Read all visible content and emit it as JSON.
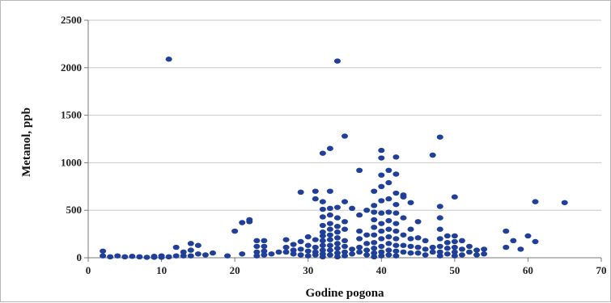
{
  "chart_data": {
    "type": "scatter",
    "xlabel": "Godine pogona",
    "ylabel": "Metanol, ppb",
    "xlim": [
      0,
      70
    ],
    "ylim": [
      0,
      2500
    ],
    "xticks": [
      "0",
      "10",
      "20",
      "30",
      "40",
      "50",
      "60",
      "70"
    ],
    "yticks": [
      "0",
      "500",
      "1000",
      "1500",
      "2000",
      "2500"
    ],
    "grid": "horizontal",
    "legend": "none",
    "colors": {
      "points": "#1f3f99",
      "grid": "#c8c8c8",
      "axis": "#7a7a7a"
    },
    "points": [
      [
        2,
        70
      ],
      [
        2,
        20
      ],
      [
        3,
        10
      ],
      [
        4,
        20
      ],
      [
        5,
        10
      ],
      [
        6,
        15
      ],
      [
        7,
        10
      ],
      [
        8,
        5
      ],
      [
        9,
        15
      ],
      [
        9,
        5
      ],
      [
        10,
        20
      ],
      [
        10,
        5
      ],
      [
        11,
        2090
      ],
      [
        11,
        10
      ],
      [
        12,
        110
      ],
      [
        12,
        20
      ],
      [
        13,
        60
      ],
      [
        13,
        20
      ],
      [
        14,
        150
      ],
      [
        14,
        80
      ],
      [
        14,
        20
      ],
      [
        15,
        130
      ],
      [
        15,
        40
      ],
      [
        16,
        30
      ],
      [
        17,
        50
      ],
      [
        19,
        20
      ],
      [
        20,
        280
      ],
      [
        21,
        370
      ],
      [
        21,
        40
      ],
      [
        22,
        400
      ],
      [
        22,
        380
      ],
      [
        23,
        180
      ],
      [
        23,
        120
      ],
      [
        23,
        60
      ],
      [
        23,
        20
      ],
      [
        24,
        180
      ],
      [
        24,
        120
      ],
      [
        24,
        70
      ],
      [
        24,
        30
      ],
      [
        25,
        40
      ],
      [
        26,
        60
      ],
      [
        27,
        190
      ],
      [
        27,
        110
      ],
      [
        27,
        60
      ],
      [
        28,
        140
      ],
      [
        28,
        80
      ],
      [
        28,
        40
      ],
      [
        29,
        690
      ],
      [
        29,
        170
      ],
      [
        29,
        90
      ],
      [
        29,
        30
      ],
      [
        30,
        220
      ],
      [
        30,
        130
      ],
      [
        30,
        70
      ],
      [
        30,
        20
      ],
      [
        31,
        700
      ],
      [
        31,
        620
      ],
      [
        31,
        190
      ],
      [
        31,
        110
      ],
      [
        31,
        60
      ],
      [
        31,
        30
      ],
      [
        32,
        1100
      ],
      [
        32,
        590
      ],
      [
        32,
        510
      ],
      [
        32,
        430
      ],
      [
        32,
        340
      ],
      [
        32,
        270
      ],
      [
        32,
        230
      ],
      [
        32,
        180
      ],
      [
        32,
        130
      ],
      [
        32,
        80
      ],
      [
        32,
        40
      ],
      [
        32,
        10
      ],
      [
        33,
        1150
      ],
      [
        33,
        700
      ],
      [
        33,
        520
      ],
      [
        33,
        450
      ],
      [
        33,
        360
      ],
      [
        33,
        300
      ],
      [
        33,
        240
      ],
      [
        33,
        190
      ],
      [
        33,
        130
      ],
      [
        33,
        80
      ],
      [
        33,
        30
      ],
      [
        34,
        2070
      ],
      [
        34,
        530
      ],
      [
        34,
        420
      ],
      [
        34,
        330
      ],
      [
        34,
        270
      ],
      [
        34,
        210
      ],
      [
        34,
        150
      ],
      [
        34,
        100
      ],
      [
        34,
        50
      ],
      [
        34,
        10
      ],
      [
        35,
        1280
      ],
      [
        35,
        590
      ],
      [
        35,
        380
      ],
      [
        35,
        300
      ],
      [
        35,
        180
      ],
      [
        35,
        120
      ],
      [
        35,
        60
      ],
      [
        35,
        20
      ],
      [
        36,
        520
      ],
      [
        36,
        90
      ],
      [
        36,
        40
      ],
      [
        37,
        920
      ],
      [
        37,
        450
      ],
      [
        37,
        280
      ],
      [
        37,
        200
      ],
      [
        37,
        110
      ],
      [
        37,
        60
      ],
      [
        38,
        500
      ],
      [
        38,
        240
      ],
      [
        38,
        150
      ],
      [
        38,
        80
      ],
      [
        38,
        30
      ],
      [
        39,
        700
      ],
      [
        39,
        550
      ],
      [
        39,
        480
      ],
      [
        39,
        400
      ],
      [
        39,
        320
      ],
      [
        39,
        240
      ],
      [
        39,
        160
      ],
      [
        39,
        100
      ],
      [
        39,
        50
      ],
      [
        39,
        10
      ],
      [
        40,
        1130
      ],
      [
        40,
        1050
      ],
      [
        40,
        870
      ],
      [
        40,
        750
      ],
      [
        40,
        600
      ],
      [
        40,
        470
      ],
      [
        40,
        360
      ],
      [
        40,
        280
      ],
      [
        40,
        200
      ],
      [
        40,
        120
      ],
      [
        40,
        60
      ],
      [
        40,
        20
      ],
      [
        41,
        920
      ],
      [
        41,
        790
      ],
      [
        41,
        620
      ],
      [
        41,
        480
      ],
      [
        41,
        390
      ],
      [
        41,
        300
      ],
      [
        41,
        220
      ],
      [
        41,
        150
      ],
      [
        41,
        80
      ],
      [
        41,
        30
      ],
      [
        42,
        1060
      ],
      [
        42,
        880
      ],
      [
        42,
        680
      ],
      [
        42,
        560
      ],
      [
        42,
        470
      ],
      [
        42,
        360
      ],
      [
        42,
        280
      ],
      [
        42,
        200
      ],
      [
        42,
        130
      ],
      [
        42,
        70
      ],
      [
        42,
        20
      ],
      [
        43,
        660
      ],
      [
        43,
        640
      ],
      [
        43,
        420
      ],
      [
        43,
        240
      ],
      [
        43,
        130
      ],
      [
        43,
        60
      ],
      [
        44,
        580
      ],
      [
        44,
        300
      ],
      [
        44,
        200
      ],
      [
        44,
        120
      ],
      [
        44,
        50
      ],
      [
        45,
        380
      ],
      [
        45,
        210
      ],
      [
        45,
        110
      ],
      [
        45,
        50
      ],
      [
        46,
        180
      ],
      [
        46,
        90
      ],
      [
        46,
        30
      ],
      [
        47,
        1080
      ],
      [
        47,
        110
      ],
      [
        47,
        60
      ],
      [
        48,
        1270
      ],
      [
        48,
        540
      ],
      [
        48,
        420
      ],
      [
        48,
        300
      ],
      [
        48,
        200
      ],
      [
        48,
        120
      ],
      [
        48,
        60
      ],
      [
        48,
        20
      ],
      [
        49,
        230
      ],
      [
        49,
        160
      ],
      [
        49,
        100
      ],
      [
        49,
        40
      ],
      [
        50,
        640
      ],
      [
        50,
        230
      ],
      [
        50,
        170
      ],
      [
        50,
        110
      ],
      [
        50,
        60
      ],
      [
        50,
        20
      ],
      [
        51,
        180
      ],
      [
        51,
        90
      ],
      [
        51,
        30
      ],
      [
        52,
        120
      ],
      [
        52,
        60
      ],
      [
        53,
        80
      ],
      [
        53,
        30
      ],
      [
        54,
        90
      ],
      [
        54,
        40
      ],
      [
        57,
        280
      ],
      [
        57,
        110
      ],
      [
        58,
        180
      ],
      [
        59,
        90
      ],
      [
        60,
        230
      ],
      [
        61,
        590
      ],
      [
        61,
        170
      ],
      [
        65,
        580
      ]
    ]
  }
}
